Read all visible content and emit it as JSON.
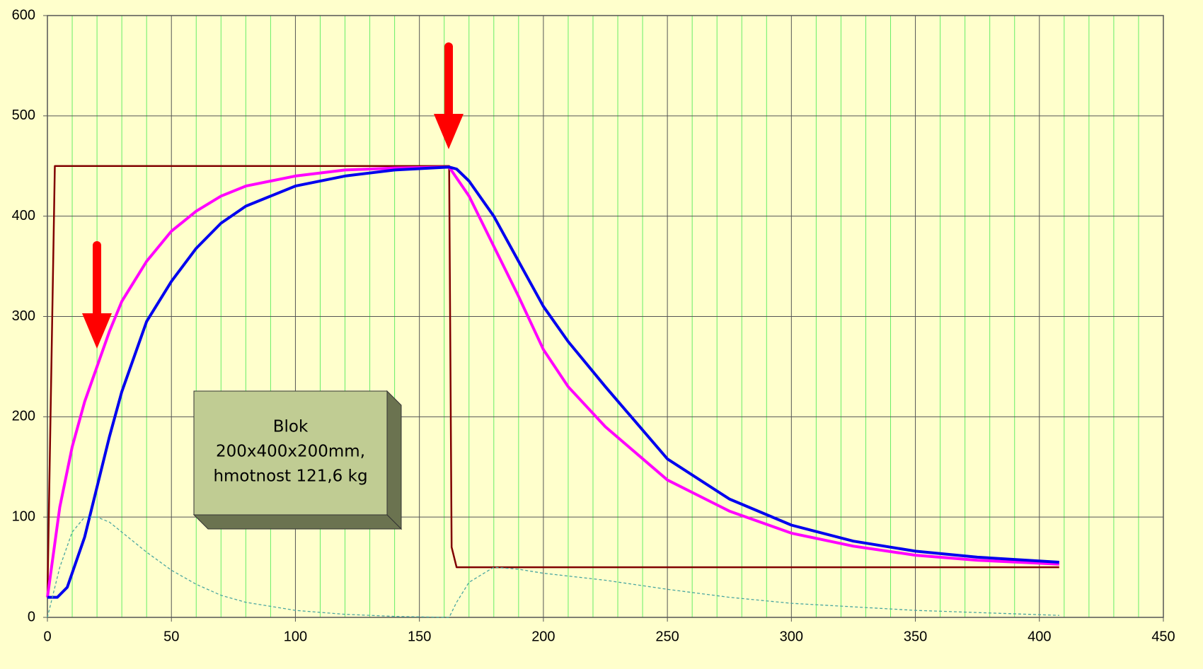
{
  "chart_data": {
    "type": "line",
    "xlim": [
      0,
      450
    ],
    "xticks": [
      0,
      50,
      100,
      150,
      200,
      250,
      300,
      350,
      400,
      450
    ],
    "ylim": [
      0,
      600
    ],
    "yticks": [
      0,
      100,
      200,
      300,
      400,
      500,
      600
    ],
    "grid": true,
    "minor_grid": true,
    "annotation": [
      "Blok",
      "200x400x200mm,",
      "hmotnost 121,6 kg"
    ],
    "series": [
      {
        "color": "#800000",
        "dashed": false,
        "x": [
          0,
          3,
          162,
          163,
          165,
          408
        ],
        "values": [
          20,
          450,
          450,
          70,
          50,
          50
        ]
      },
      {
        "color": "#ff00ff",
        "dashed": false,
        "x": [
          0,
          5,
          10,
          15,
          20,
          25,
          30,
          40,
          50,
          60,
          70,
          80,
          100,
          120,
          140,
          162,
          170,
          180,
          190,
          200,
          210,
          225,
          250,
          275,
          300,
          325,
          350,
          375,
          408
        ],
        "values": [
          20,
          110,
          170,
          215,
          250,
          285,
          315,
          355,
          385,
          405,
          420,
          430,
          440,
          446,
          448,
          449,
          420,
          370,
          320,
          267,
          230,
          190,
          137,
          106,
          84,
          71,
          62,
          57,
          53
        ]
      },
      {
        "color": "#0000ee",
        "dashed": false,
        "x": [
          0,
          4,
          8,
          15,
          20,
          25,
          30,
          40,
          50,
          60,
          70,
          80,
          100,
          120,
          140,
          162,
          165,
          170,
          180,
          190,
          200,
          210,
          225,
          250,
          275,
          300,
          325,
          350,
          375,
          408
        ],
        "values": [
          20,
          20,
          30,
          80,
          130,
          180,
          225,
          295,
          335,
          368,
          393,
          410,
          430,
          440,
          446,
          449,
          447,
          435,
          400,
          355,
          310,
          275,
          230,
          158,
          118,
          92,
          76,
          66,
          60,
          55
        ]
      },
      {
        "color": "#4aa6a0",
        "dashed": true,
        "x": [
          0,
          5,
          10,
          15,
          20,
          25,
          30,
          40,
          50,
          60,
          70,
          80,
          100,
          120,
          140,
          162,
          165,
          170,
          180,
          190,
          200,
          225,
          250,
          275,
          300,
          350,
          408
        ],
        "values": [
          0,
          50,
          85,
          100,
          100,
          95,
          85,
          65,
          47,
          33,
          22,
          15,
          7,
          3,
          1,
          0,
          15,
          35,
          50,
          48,
          44,
          37,
          28,
          20,
          14,
          7,
          2
        ]
      }
    ]
  }
}
